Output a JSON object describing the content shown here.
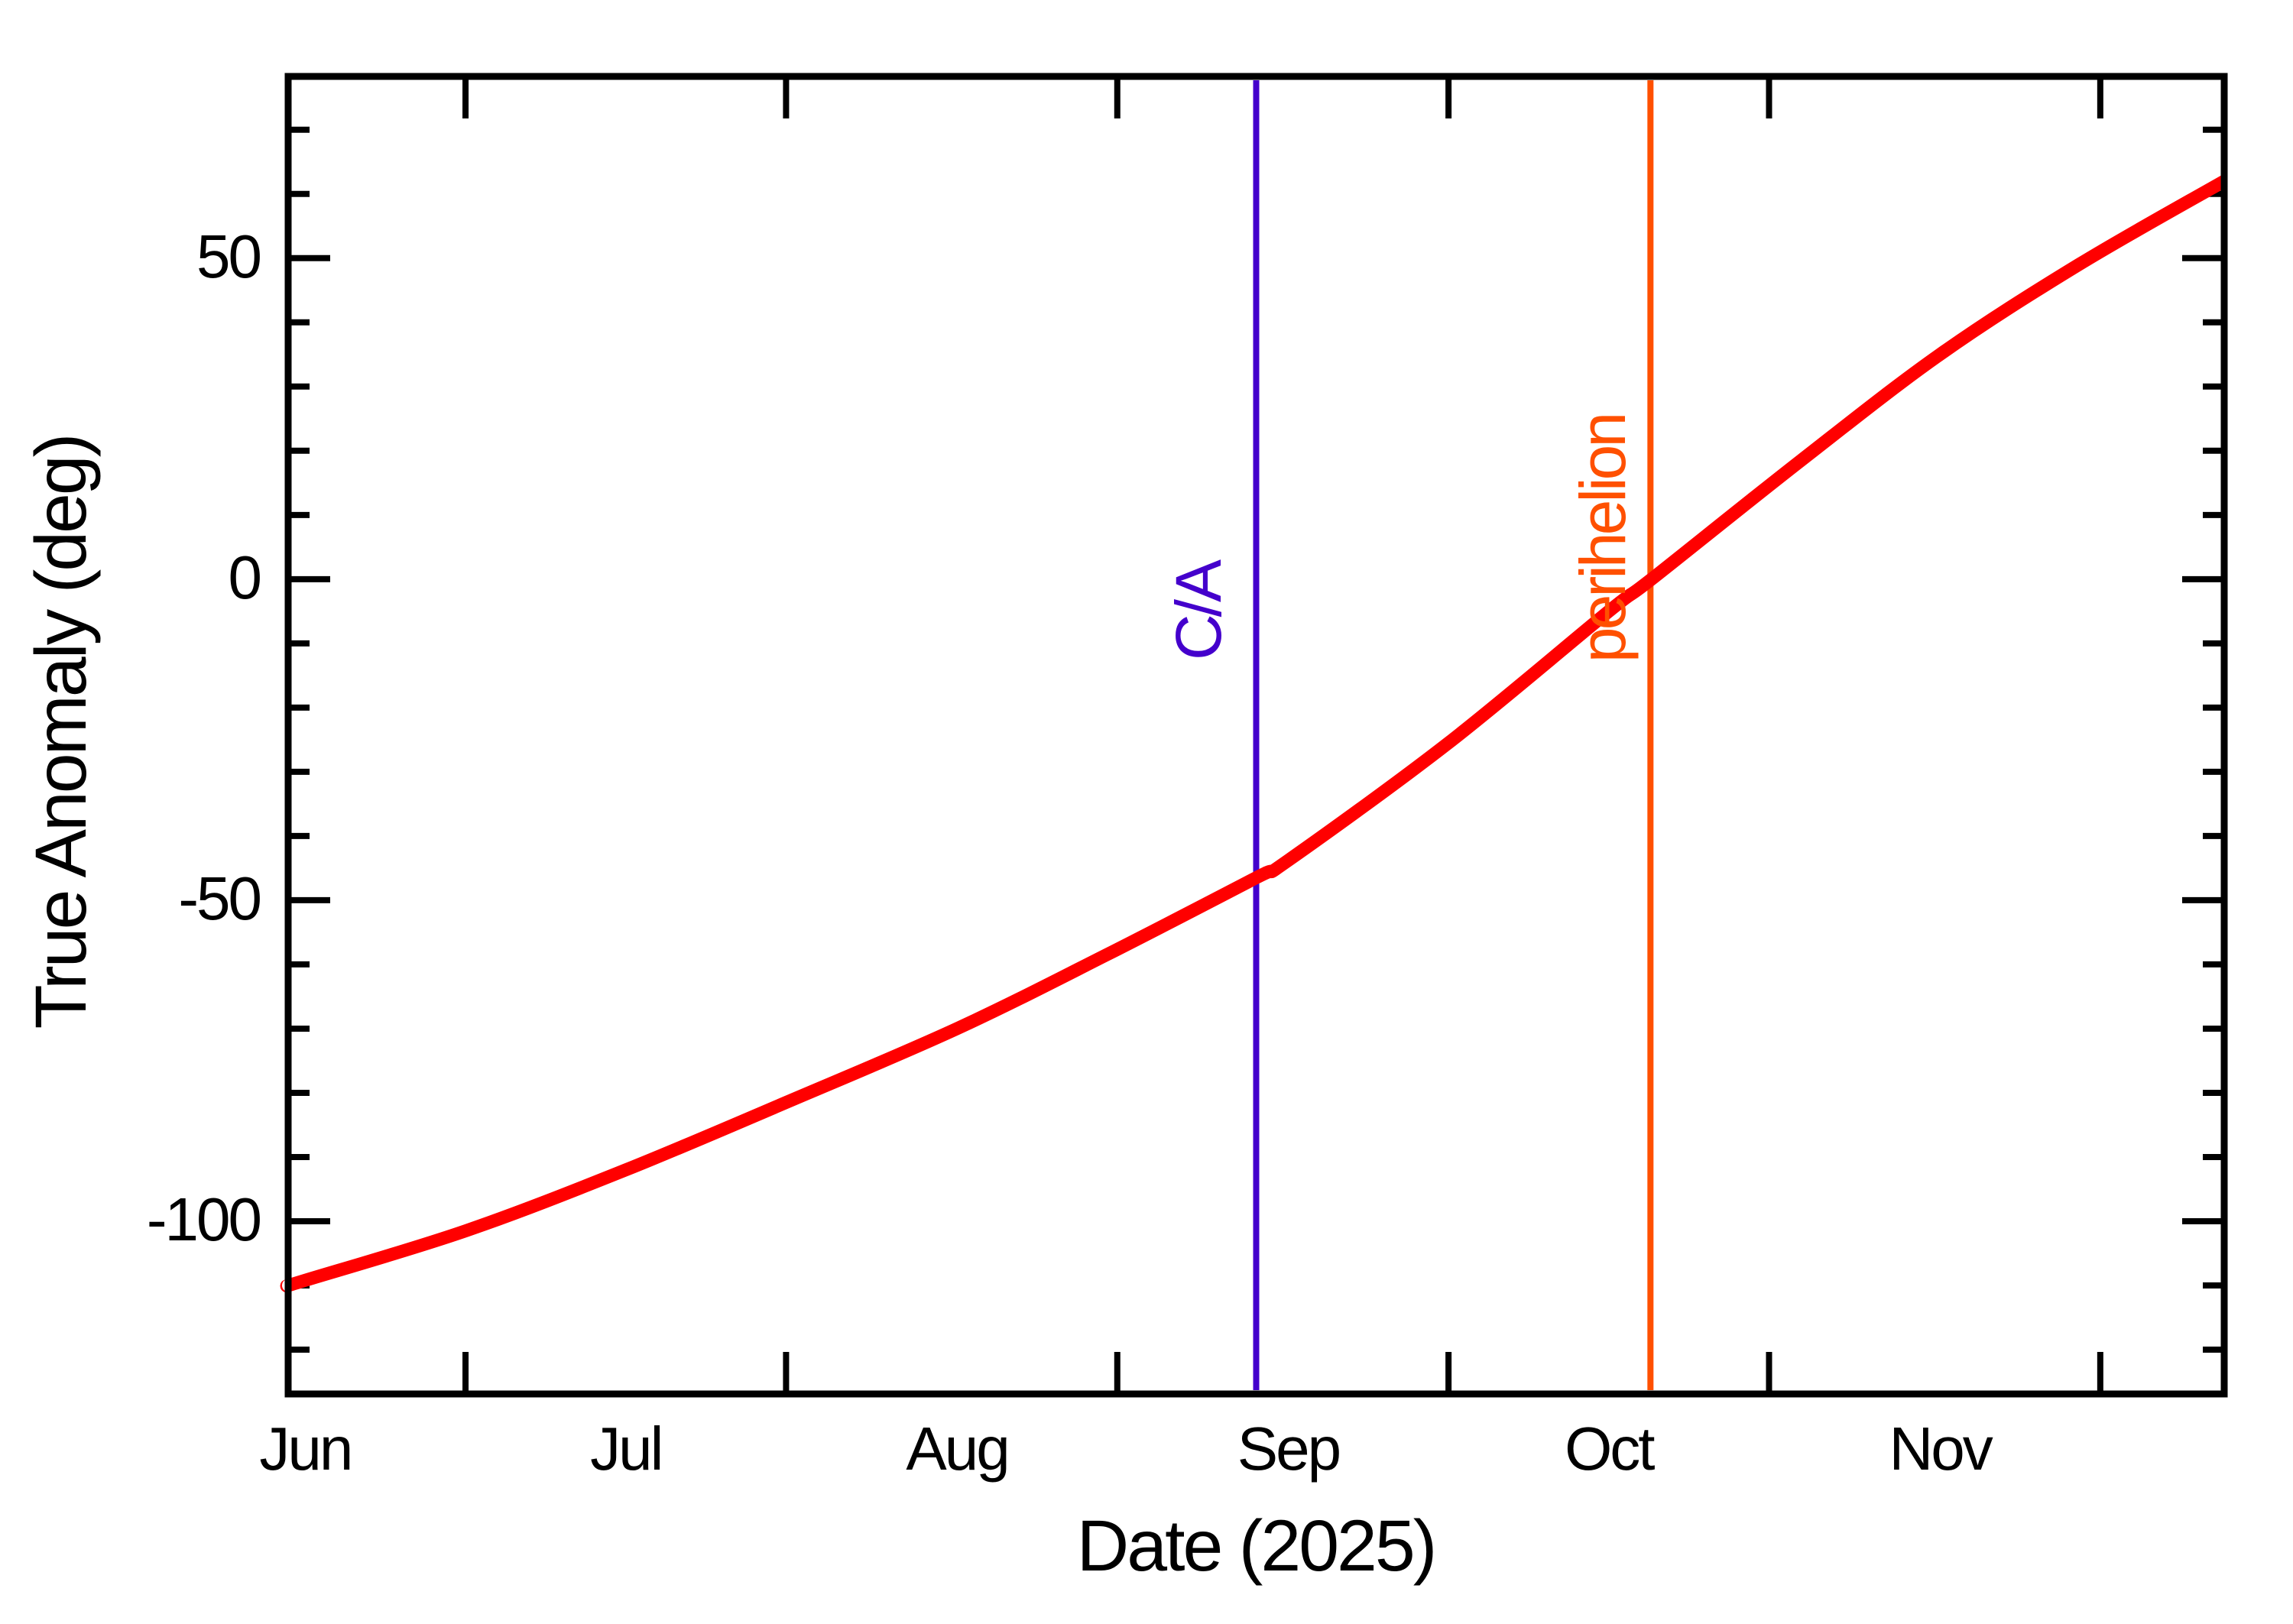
{
  "page": {
    "background": "#FFFFFF",
    "frame_color": "#000000"
  },
  "chart_data": {
    "type": "line",
    "title": "",
    "xlabel": "Date (2025)",
    "ylabel": "True Anomaly (deg)",
    "grid": false,
    "legend": "none",
    "x_axis": {
      "unit": "days from Jun 1, 2025",
      "range_days": [
        -1.6,
        179.6
      ],
      "month_ticks": [
        {
          "label": "Jun",
          "day": 0
        },
        {
          "label": "Jul",
          "day": 30
        },
        {
          "label": "Aug",
          "day": 61
        },
        {
          "label": "Sep",
          "day": 92
        },
        {
          "label": "Oct",
          "day": 122
        },
        {
          "label": "Nov",
          "day": 153
        }
      ],
      "midmonth_tick_days": [
        15,
        45,
        76,
        107,
        137,
        168
      ]
    },
    "y_axis": {
      "range_deg": [
        -126.9,
        78.3
      ],
      "major_ticks": [
        {
          "value": 50,
          "label": "50"
        },
        {
          "value": 0,
          "label": "0"
        },
        {
          "value": -50,
          "label": "-50"
        },
        {
          "value": -100,
          "label": "-100"
        }
      ],
      "minor_step": 10
    },
    "series": [
      {
        "name": "true-anomaly",
        "color": "#FF0000",
        "points": [
          [
            -1.6,
            -110.0
          ],
          [
            0,
            -109.2
          ],
          [
            15,
            -101.5
          ],
          [
            30,
            -92.0
          ],
          [
            45,
            -81.5
          ],
          [
            61,
            -70.0
          ],
          [
            75,
            -58.5
          ],
          [
            89,
            -46.5
          ],
          [
            92,
            -43.8
          ],
          [
            107,
            -25.5
          ],
          [
            122,
            -5.0
          ],
          [
            126,
            0.0
          ],
          [
            140,
            18.5
          ],
          [
            153,
            35.0
          ],
          [
            166,
            49.0
          ],
          [
            179.6,
            62.0
          ]
        ]
      }
    ],
    "annotations": [
      {
        "label": "C/A",
        "day": 89.0,
        "color": "#4400CC"
      },
      {
        "label": "perihelion",
        "day": 125.9,
        "color": "#FF5000"
      }
    ]
  }
}
